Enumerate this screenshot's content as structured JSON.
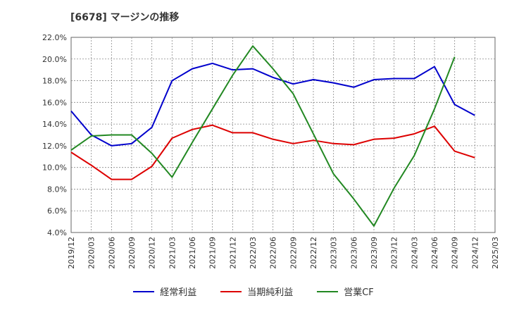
{
  "chart_data": {
    "type": "line",
    "title": "[6678]  マージンの推移",
    "xlabel": "",
    "ylabel": "",
    "ylim": [
      4.0,
      22.0
    ],
    "yticks": [
      "4.0%",
      "6.0%",
      "8.0%",
      "10.0%",
      "12.0%",
      "14.0%",
      "16.0%",
      "18.0%",
      "20.0%",
      "22.0%"
    ],
    "categories": [
      "2019/12",
      "2020/03",
      "2020/06",
      "2020/09",
      "2020/12",
      "2021/03",
      "2021/06",
      "2021/09",
      "2021/12",
      "2022/03",
      "2022/06",
      "2022/09",
      "2022/12",
      "2023/03",
      "2023/06",
      "2023/09",
      "2023/12",
      "2024/03",
      "2024/06",
      "2024/09",
      "2024/12",
      "2025/03"
    ],
    "grid": true,
    "legend_position": "bottom",
    "series": [
      {
        "name": "経常利益",
        "color": "#0000cc",
        "values": [
          15.2,
          13.0,
          12.0,
          12.2,
          13.7,
          18.0,
          19.1,
          19.6,
          19.0,
          19.1,
          18.3,
          17.7,
          18.1,
          17.8,
          17.4,
          18.1,
          18.2,
          18.2,
          19.3,
          15.8,
          14.8,
          null
        ]
      },
      {
        "name": "当期純利益",
        "color": "#dd0000",
        "values": [
          11.4,
          10.2,
          8.9,
          8.9,
          10.1,
          12.7,
          13.5,
          13.9,
          13.2,
          13.2,
          12.6,
          12.2,
          12.5,
          12.2,
          12.1,
          12.6,
          12.7,
          13.1,
          13.8,
          11.5,
          10.9,
          null
        ]
      },
      {
        "name": "営業CF",
        "color": "#228822",
        "values": [
          11.6,
          12.9,
          13.0,
          13.0,
          11.3,
          9.1,
          12.3,
          15.4,
          18.5,
          21.2,
          19.1,
          16.8,
          13.1,
          9.4,
          7.1,
          4.6,
          8.1,
          11.1,
          15.4,
          20.2,
          null,
          null
        ]
      }
    ]
  }
}
